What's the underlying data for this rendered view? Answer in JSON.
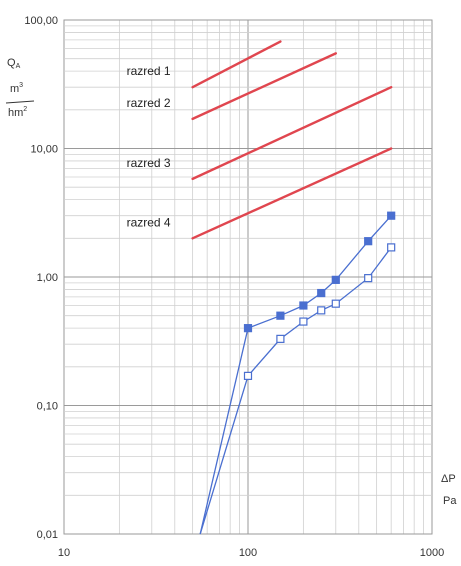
{
  "chart_data": {
    "type": "line",
    "x_scale": "log",
    "y_scale": "log",
    "xlim": [
      10,
      1000
    ],
    "ylim": [
      0.01,
      100
    ],
    "grid": true,
    "x_ticks": [
      "10",
      "100",
      "1000"
    ],
    "y_ticks": [
      "0,01",
      "0,10",
      "1,00",
      "10,00",
      "100,00"
    ],
    "ylabel": {
      "q": "Q",
      "sub": "A",
      "num": "m",
      "num_sup": "3",
      "den": "hm",
      "den_sup": "2"
    },
    "xlabel": {
      "delta": "ΔP",
      "unit": "Pa"
    },
    "class_lines": [
      {
        "name": "razred 1",
        "x": [
          50,
          150
        ],
        "y": [
          30,
          68
        ]
      },
      {
        "name": "razred 2",
        "x": [
          50,
          300
        ],
        "y": [
          17,
          55
        ]
      },
      {
        "name": "razred 3",
        "x": [
          50,
          600
        ],
        "y": [
          5.8,
          30
        ]
      },
      {
        "name": "razred 4",
        "x": [
          50,
          600
        ],
        "y": [
          2.0,
          10
        ]
      }
    ],
    "series": [
      {
        "marker": "filled-square",
        "x": [
          55,
          100,
          150,
          200,
          250,
          300,
          450,
          600
        ],
        "y": [
          0.01,
          0.4,
          0.5,
          0.6,
          0.75,
          0.95,
          1.9,
          3.0
        ]
      },
      {
        "marker": "open-square",
        "x": [
          55,
          100,
          150,
          200,
          250,
          300,
          450,
          600
        ],
        "y": [
          0.01,
          0.17,
          0.33,
          0.45,
          0.55,
          0.62,
          0.98,
          1.7
        ]
      }
    ],
    "colors": {
      "class_line": "#e0464f",
      "series": "#4a6fd0",
      "grid_major": "#9a9a9a",
      "grid_minor": "#d0d0d0"
    }
  }
}
